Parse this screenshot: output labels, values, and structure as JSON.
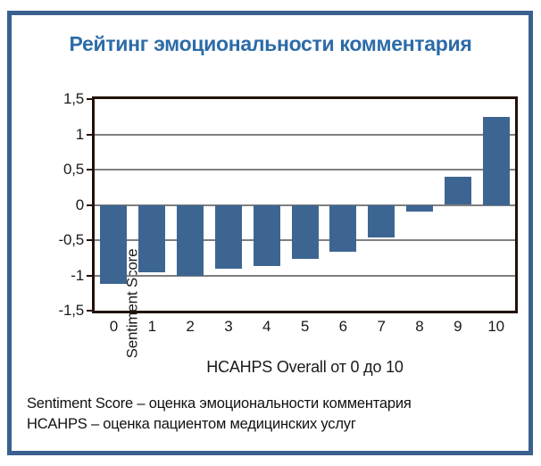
{
  "title": "Рейтинг эмоциональности комментария",
  "title_color": "#2C6BA8",
  "frame": {
    "border_color": "#3A6090"
  },
  "chart_data": {
    "type": "bar",
    "title": "Рейтинг эмоциональности комментария",
    "categories": [
      "0",
      "1",
      "2",
      "3",
      "4",
      "5",
      "6",
      "7",
      "8",
      "9",
      "10"
    ],
    "values": [
      -1.12,
      -0.96,
      -1.0,
      -0.9,
      -0.87,
      -0.76,
      -0.66,
      -0.46,
      -0.1,
      0.4,
      1.25
    ],
    "xlabel": "HCAHPS Overall от 0 до 10",
    "ylabel": "Sentiment Score",
    "ylim": [
      -1.5,
      1.5
    ],
    "ytick_step": 0.5,
    "ytick_labels": [
      "1,5",
      "1",
      "0,5",
      "0",
      "-0,5",
      "-1",
      "-1,5"
    ],
    "grid": true,
    "legend": "none",
    "bar_color": "#3D6591",
    "gridline_color": "#7F7F7F",
    "axis_color": "#231103"
  },
  "footnotes": [
    "Sentiment Score – оценка эмоциональности комментария",
    "HCAHPS – оценка пациентом медицинских услуг"
  ]
}
